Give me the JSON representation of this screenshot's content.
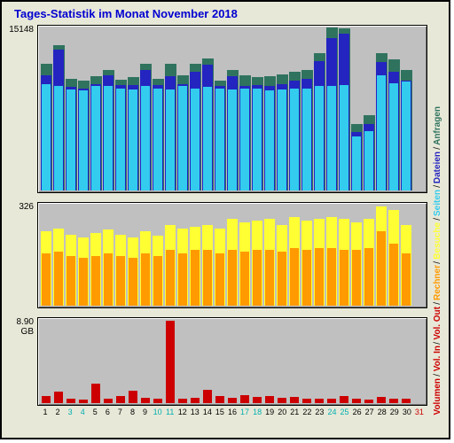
{
  "title": "Tages-Statistik im Monat November 2018",
  "colors": {
    "anfragen": "#2f735f",
    "dateien": "#2424c0",
    "seiten": "#33ccee",
    "besuche": "#ffff33",
    "rechner": "#ff9a00",
    "volin": "#cc0000",
    "volout": "#cc0000",
    "panel_bg": "#c0c0c0",
    "frame_bg": "#e8e8d8",
    "title_color": "#0000d0"
  },
  "panels": {
    "top": {
      "ymax_label": "15148",
      "ymax": 15148
    },
    "middle": {
      "ymax_label": "326",
      "ymax": 326
    },
    "bottom": {
      "ymax_label": "8.90 GB",
      "ymax": 8.9
    }
  },
  "legend": [
    {
      "label": "Volumen",
      "color": "#cc0000"
    },
    {
      "label": "Vol. In",
      "color": "#cc0000"
    },
    {
      "label": "Vol. Out",
      "color": "#cc0000"
    },
    {
      "label": "Rechner",
      "color": "#ff9a00"
    },
    {
      "label": "Besuche",
      "color": "#ffff33"
    },
    {
      "label": "Seiten",
      "color": "#33ccee"
    },
    {
      "label": "Dateien",
      "color": "#2424c0"
    },
    {
      "label": "Anfragen",
      "color": "#2f735f"
    }
  ],
  "days": [
    1,
    2,
    3,
    4,
    5,
    6,
    7,
    8,
    9,
    10,
    11,
    12,
    13,
    14,
    15,
    16,
    17,
    18,
    19,
    20,
    21,
    22,
    23,
    24,
    25,
    26,
    27,
    28,
    29,
    30,
    31
  ],
  "weekend_days": [
    3,
    4,
    10,
    11,
    17,
    18,
    24,
    25
  ],
  "missing_days": [
    31
  ],
  "data": {
    "anfragen": [
      11800,
      13500,
      10400,
      10200,
      10600,
      11200,
      10300,
      10500,
      11800,
      10400,
      11800,
      10700,
      11800,
      12300,
      10200,
      11200,
      10700,
      10500,
      10600,
      10800,
      11000,
      11200,
      12800,
      15148,
      15100,
      6200,
      7000,
      12800,
      12200,
      11200,
      0
    ],
    "dateien": [
      10700,
      13100,
      9600,
      9500,
      9900,
      10700,
      9800,
      9800,
      11200,
      9800,
      10600,
      9900,
      11000,
      11700,
      9700,
      10600,
      9700,
      9800,
      9700,
      9900,
      10200,
      10400,
      12000,
      14200,
      14600,
      5400,
      6200,
      11900,
      11000,
      10200,
      0
    ],
    "seiten": [
      9900,
      9700,
      9400,
      9300,
      9700,
      9700,
      9500,
      9400,
      9700,
      9500,
      9400,
      9700,
      9500,
      9600,
      9500,
      9400,
      9500,
      9500,
      9300,
      9400,
      9500,
      9500,
      9700,
      9700,
      9800,
      5000,
      5500,
      10700,
      10000,
      10100,
      0
    ],
    "besuche": [
      240,
      250,
      230,
      220,
      235,
      245,
      230,
      220,
      240,
      225,
      260,
      250,
      255,
      260,
      250,
      280,
      270,
      275,
      280,
      260,
      285,
      275,
      280,
      285,
      280,
      270,
      280,
      320,
      310,
      260,
      0
    ],
    "rechner": [
      170,
      175,
      160,
      155,
      160,
      170,
      160,
      155,
      170,
      160,
      180,
      170,
      180,
      180,
      170,
      180,
      175,
      180,
      180,
      175,
      185,
      180,
      185,
      185,
      180,
      180,
      185,
      240,
      200,
      170,
      0
    ],
    "volumen": [
      0.8,
      1.2,
      0.5,
      0.4,
      2.1,
      0.5,
      0.8,
      1.3,
      0.6,
      0.5,
      8.8,
      0.5,
      0.6,
      1.4,
      0.8,
      0.6,
      0.9,
      0.7,
      0.8,
      0.6,
      0.7,
      0.5,
      0.5,
      0.5,
      0.8,
      0.5,
      0.4,
      0.7,
      0.5,
      0.5,
      0
    ]
  },
  "style": {
    "title_fontsize": 13,
    "axis_label_fontsize": 10,
    "xaxis_fontsize": 9,
    "legend_fontsize": 10
  }
}
